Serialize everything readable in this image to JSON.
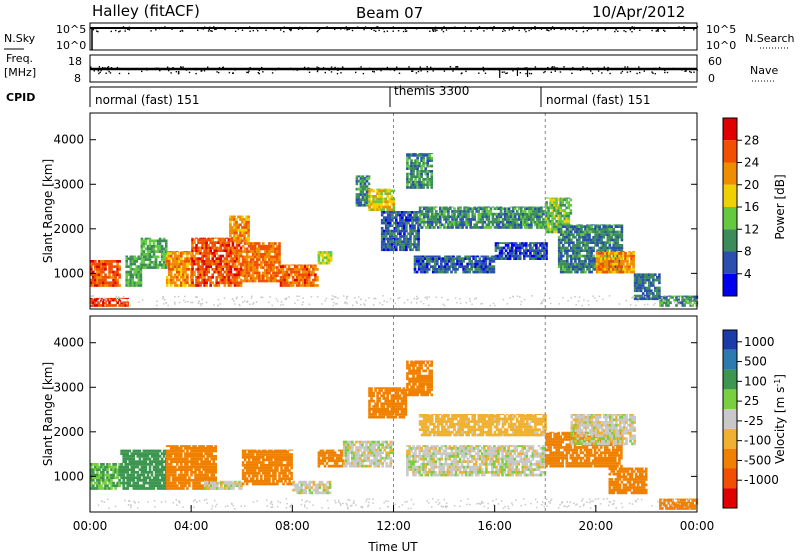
{
  "header": {
    "station": "Halley (fitACF)",
    "beam": "Beam 07",
    "date": "10/Apr/2012"
  },
  "left_labels": {
    "nsky": "N.Sky",
    "freq": "Freq.",
    "freq_unit": "[MHz]",
    "cpid": "CPID"
  },
  "right_labels": {
    "nsearch": "N.Search",
    "nave": "Nave"
  },
  "nsky_ticks": [
    "10^5",
    "10^0"
  ],
  "nsearch_ticks": [
    "10^5",
    "10^0"
  ],
  "freq_ticks": [
    "18",
    "8"
  ],
  "nave_ticks": [
    "60",
    "0"
  ],
  "cpid_segments": [
    {
      "label": "normal (fast) 151",
      "start_hour": 0
    },
    {
      "label": "themis 3300",
      "start_hour": 12
    },
    {
      "label": "normal (fast) 151",
      "start_hour": 18
    }
  ],
  "colors": {
    "power": [
      "#0000ee",
      "#2a4fb0",
      "#3c8c5a",
      "#64c840",
      "#f0d000",
      "#f08c00",
      "#f05000",
      "#e00000"
    ],
    "velocity": [
      "#1a3ca8",
      "#2c7ab0",
      "#3c9650",
      "#78d040",
      "#c8c8c8",
      "#f0b030",
      "#f08000",
      "#f05000",
      "#e00000"
    ],
    "ground": "#c8c8c8"
  },
  "chart_data": [
    {
      "type": "heatmap",
      "name": "power",
      "ylabel": "Slant Range [km]",
      "yticks": [
        "1000",
        "2000",
        "3000",
        "4000"
      ],
      "ylim": [
        200,
        4600
      ],
      "xlim": [
        0,
        24
      ],
      "colorbar_label": "Power [dB]",
      "colorbar_ticks": [
        "4",
        "8",
        "12",
        "16",
        "20",
        "24",
        "28"
      ],
      "colorbar_range": [
        0,
        32
      ],
      "regions": [
        {
          "t0": 0.0,
          "t1": 1.2,
          "r0": 700,
          "r1": 1300,
          "value": 26
        },
        {
          "t0": 0.0,
          "t1": 1.5,
          "r0": 250,
          "r1": 450,
          "value": 28
        },
        {
          "t0": 1.4,
          "t1": 2.0,
          "r0": 700,
          "r1": 1400,
          "value": 12
        },
        {
          "t0": 2.0,
          "t1": 3.0,
          "r0": 1100,
          "r1": 1800,
          "value": 12
        },
        {
          "t0": 3.0,
          "t1": 4.0,
          "r0": 700,
          "r1": 1500,
          "value": 22
        },
        {
          "t0": 4.0,
          "t1": 6.0,
          "r0": 700,
          "r1": 1800,
          "value": 26
        },
        {
          "t0": 5.5,
          "t1": 6.3,
          "r0": 1700,
          "r1": 2300,
          "value": 22
        },
        {
          "t0": 6.0,
          "t1": 7.5,
          "r0": 800,
          "r1": 1700,
          "value": 24
        },
        {
          "t0": 7.5,
          "t1": 9.0,
          "r0": 700,
          "r1": 1200,
          "value": 25
        },
        {
          "t0": 9.0,
          "t1": 9.5,
          "r0": 1200,
          "r1": 1500,
          "value": 16
        },
        {
          "t0": 10.5,
          "t1": 11.0,
          "r0": 2500,
          "r1": 3200,
          "value": 10
        },
        {
          "t0": 11.0,
          "t1": 12.0,
          "r0": 2400,
          "r1": 2900,
          "value": 18
        },
        {
          "t0": 11.5,
          "t1": 13.0,
          "r0": 1500,
          "r1": 2400,
          "value": 7
        },
        {
          "t0": 12.5,
          "t1": 13.5,
          "r0": 2900,
          "r1": 3700,
          "value": 10
        },
        {
          "t0": 12.8,
          "t1": 16.0,
          "r0": 1000,
          "r1": 1400,
          "value": 7
        },
        {
          "t0": 13.0,
          "t1": 18.0,
          "r0": 2000,
          "r1": 2500,
          "value": 10
        },
        {
          "t0": 16.0,
          "t1": 18.0,
          "r0": 1300,
          "r1": 1700,
          "value": 6
        },
        {
          "t0": 18.0,
          "t1": 19.0,
          "r0": 1900,
          "r1": 2700,
          "value": 14
        },
        {
          "t0": 18.5,
          "t1": 21.0,
          "r0": 1000,
          "r1": 2100,
          "value": 9
        },
        {
          "t0": 20.0,
          "t1": 21.5,
          "r0": 1000,
          "r1": 1500,
          "value": 22
        },
        {
          "t0": 21.5,
          "t1": 22.5,
          "r0": 400,
          "r1": 1000,
          "value": 8
        },
        {
          "t0": 22.5,
          "t1": 24.0,
          "r0": 250,
          "r1": 500,
          "value": 10
        }
      ]
    },
    {
      "type": "heatmap",
      "name": "velocity",
      "ylabel": "Slant Range [km]",
      "yticks": [
        "1000",
        "2000",
        "3000",
        "4000"
      ],
      "ylim": [
        200,
        4600
      ],
      "xlim": [
        0,
        24
      ],
      "xticks": [
        "00:00",
        "04:00",
        "08:00",
        "12:00",
        "16:00",
        "20:00",
        "00:00"
      ],
      "xlabel": "Time UT",
      "colorbar_label": "Velocity [m s",
      "colorbar_label_sup": "-1",
      "colorbar_label_end": "]",
      "colorbar_ticks": [
        "1000",
        "500",
        "100",
        "25",
        "-25",
        "-100",
        "-500",
        "-1000"
      ],
      "regions": [
        {
          "t0": 0.0,
          "t1": 1.2,
          "r0": 700,
          "r1": 1300,
          "value": 100
        },
        {
          "t0": 1.2,
          "t1": 3.0,
          "r0": 700,
          "r1": 1600,
          "value": 300
        },
        {
          "t0": 3.0,
          "t1": 5.0,
          "r0": 700,
          "r1": 1700,
          "value": -200
        },
        {
          "t0": 4.5,
          "t1": 6.0,
          "r0": 700,
          "r1": 900,
          "value": 0
        },
        {
          "t0": 6.0,
          "t1": 8.0,
          "r0": 800,
          "r1": 1600,
          "value": -200
        },
        {
          "t0": 8.0,
          "t1": 9.5,
          "r0": 600,
          "r1": 900,
          "value": 0
        },
        {
          "t0": 9.0,
          "t1": 10.0,
          "r0": 1200,
          "r1": 1600,
          "value": -300
        },
        {
          "t0": 10.0,
          "t1": 12.0,
          "r0": 1200,
          "r1": 1800,
          "value": 0
        },
        {
          "t0": 11.0,
          "t1": 12.5,
          "r0": 2300,
          "r1": 3000,
          "value": -300
        },
        {
          "t0": 12.5,
          "t1": 13.5,
          "r0": 2800,
          "r1": 3600,
          "value": -300
        },
        {
          "t0": 12.5,
          "t1": 18.0,
          "r0": 1000,
          "r1": 1700,
          "value": 0
        },
        {
          "t0": 13.0,
          "t1": 18.0,
          "r0": 1900,
          "r1": 2400,
          "value": -60
        },
        {
          "t0": 18.0,
          "t1": 21.0,
          "r0": 1200,
          "r1": 2000,
          "value": -200
        },
        {
          "t0": 19.0,
          "t1": 21.5,
          "r0": 1700,
          "r1": 2400,
          "value": 0
        },
        {
          "t0": 20.5,
          "t1": 22.0,
          "r0": 600,
          "r1": 1200,
          "value": -200
        },
        {
          "t0": 22.5,
          "t1": 24.0,
          "r0": 250,
          "r1": 500,
          "value": -300
        }
      ]
    }
  ]
}
